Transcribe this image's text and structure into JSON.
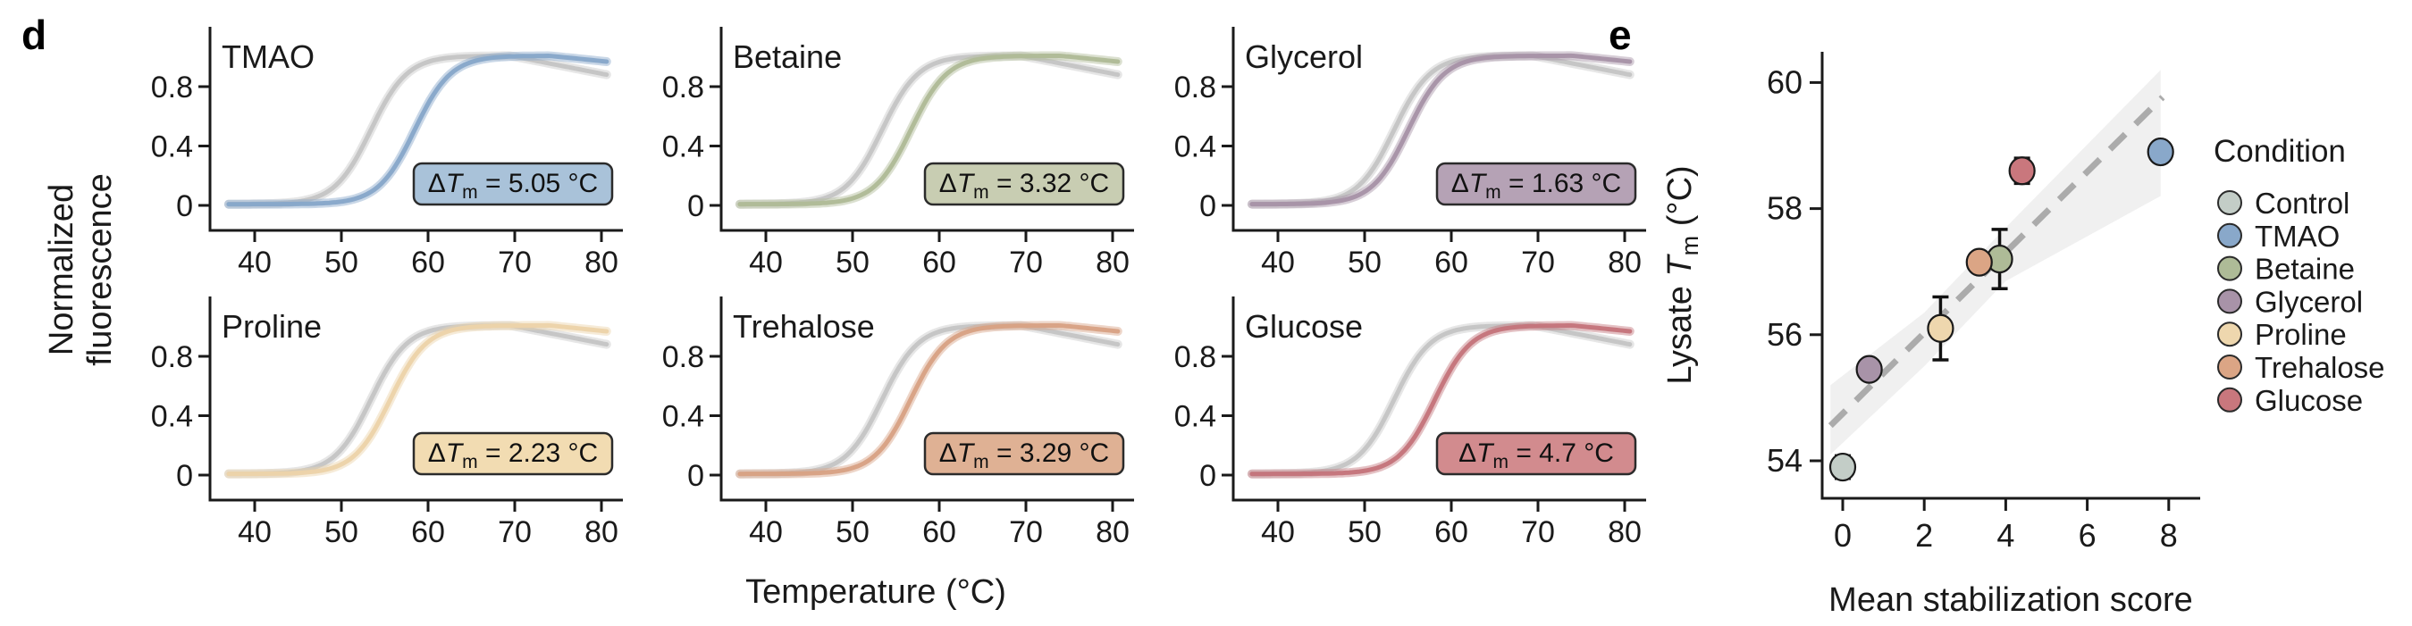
{
  "figure": {
    "background": "#ffffff",
    "text_color": "#1a1a1a"
  },
  "panel_d": {
    "label": "d",
    "y_axis_label_line1": "Normalized",
    "y_axis_label_line2": "fluorescence",
    "x_axis_label": "Temperature (°C)"
  },
  "panel_e": {
    "label": "e",
    "x_axis_label": "Mean stabilization score",
    "y_axis_label_prefix": "Lysate ",
    "y_axis_label_var": "T",
    "y_axis_label_sub": "m",
    "y_axis_label_suffix": " (°C)",
    "legend_title": "Condition"
  },
  "chart_data": [
    {
      "type": "line",
      "panel": "d",
      "description": "Thermal denaturation melt curves: gray control curve vs osmolyte-treated curve in each subplot",
      "x_ticks": [
        40,
        50,
        60,
        70,
        80
      ],
      "y_tick_labels": [
        "0",
        "0.4",
        "0.8"
      ],
      "y_tick_values": [
        0,
        0.4,
        0.8
      ],
      "x_range": [
        36.5,
        81
      ],
      "y_range": [
        -0.1,
        1.08
      ],
      "control": {
        "tm": 53.4,
        "color": "#c6c6c6",
        "halo": "#e0e0e0",
        "plateau_fade_start": 69.5,
        "plateau_fade_rate": 0.0115
      },
      "treatment_fade_start": 74,
      "treatment_fade_rate": 0.006,
      "subplots": [
        {
          "title": "TMAO",
          "delta_tm": 5.05,
          "delta_tm_label": "ΔTm = 5.05 °C",
          "delta_d": "Δ",
          "delta_var": "T",
          "delta_sub": "m",
          "delta_rest": " = 5.05 °C",
          "curve_color": "#87a7c9",
          "box_fill": "#a9c2d9"
        },
        {
          "title": "Betaine",
          "delta_tm": 3.32,
          "delta_tm_label": "ΔTm = 3.32 °C",
          "delta_d": "Δ",
          "delta_var": "T",
          "delta_sub": "m",
          "delta_rest": " = 3.32 °C",
          "curve_color": "#afbb97",
          "box_fill": "#c8cdb2"
        },
        {
          "title": "Glycerol",
          "delta_tm": 1.63,
          "delta_tm_label": "ΔTm = 1.63 °C",
          "delta_d": "Δ",
          "delta_var": "T",
          "delta_sub": "m",
          "delta_rest": " = 1.63 °C",
          "curve_color": "#a793a7",
          "box_fill": "#b5a2b5"
        },
        {
          "title": "Proline",
          "delta_tm": 2.23,
          "delta_tm_label": "ΔTm = 2.23 °C",
          "delta_d": "Δ",
          "delta_var": "T",
          "delta_sub": "m",
          "delta_rest": " = 2.23 °C",
          "curve_color": "#ecd3a9",
          "box_fill": "#f2dcb2"
        },
        {
          "title": "Trehalose",
          "delta_tm": 3.29,
          "delta_tm_label": "ΔTm = 3.29 °C",
          "delta_d": "Δ",
          "delta_var": "T",
          "delta_sub": "m",
          "delta_rest": " = 3.29 °C",
          "curve_color": "#d8a284",
          "box_fill": "#dfb194"
        },
        {
          "title": "Glucose",
          "delta_tm": 4.7,
          "delta_tm_label": "ΔTm = 4.7 °C",
          "delta_d": "Δ",
          "delta_var": "T",
          "delta_sub": "m",
          "delta_rest": " = 4.7 °C",
          "curve_color": "#c4757c",
          "box_fill": "#d28b8e"
        }
      ]
    },
    {
      "type": "scatter",
      "panel": "e",
      "x_label": "Mean stabilization score",
      "y_label": "Lysate Tm (°C)",
      "x_ticks": [
        0,
        2,
        4,
        6,
        8
      ],
      "y_ticks": [
        54,
        56,
        58,
        60
      ],
      "x_range": [
        -0.5,
        8.5
      ],
      "y_range": [
        53.4,
        60.7
      ],
      "points": [
        {
          "condition": "Control",
          "x": 0,
          "y": 53.9,
          "err": 0.18,
          "color": "#c3cdc7"
        },
        {
          "condition": "TMAO",
          "x": 7.8,
          "y": 58.9,
          "err": 0,
          "color": "#89a8ca"
        },
        {
          "condition": "Betaine",
          "x": 3.85,
          "y": 57.2,
          "err": 0.47,
          "color": "#aebb97"
        },
        {
          "condition": "Glycerol",
          "x": 0.65,
          "y": 55.45,
          "err": 0,
          "color": "#a893a8"
        },
        {
          "condition": "Proline",
          "x": 2.4,
          "y": 56.1,
          "err": 0.5,
          "color": "#eed7ae"
        },
        {
          "condition": "Trehalose",
          "x": 3.35,
          "y": 57.15,
          "err": 0,
          "color": "#dba585"
        },
        {
          "condition": "Glucose",
          "x": 4.4,
          "y": 58.6,
          "err": 0.2,
          "color": "#c9777d"
        }
      ],
      "trend": {
        "style": "dashed",
        "color": "#ababab",
        "x0": -0.3,
        "x1": 7.85,
        "intercept": 54.75,
        "slope": 0.639
      },
      "band": {
        "color": "#ebebeb",
        "upper": [
          [
            -0.3,
            55.2
          ],
          [
            2,
            56.35
          ],
          [
            4,
            57.7
          ],
          [
            7.8,
            60.2
          ]
        ],
        "lower": [
          [
            -0.3,
            54.1
          ],
          [
            2,
            55.5
          ],
          [
            4,
            56.85
          ],
          [
            7.8,
            58.2
          ]
        ]
      },
      "legend": {
        "title": "Condition",
        "items": [
          "Control",
          "TMAO",
          "Betaine",
          "Glycerol",
          "Proline",
          "Trehalose",
          "Glucose"
        ]
      }
    }
  ]
}
